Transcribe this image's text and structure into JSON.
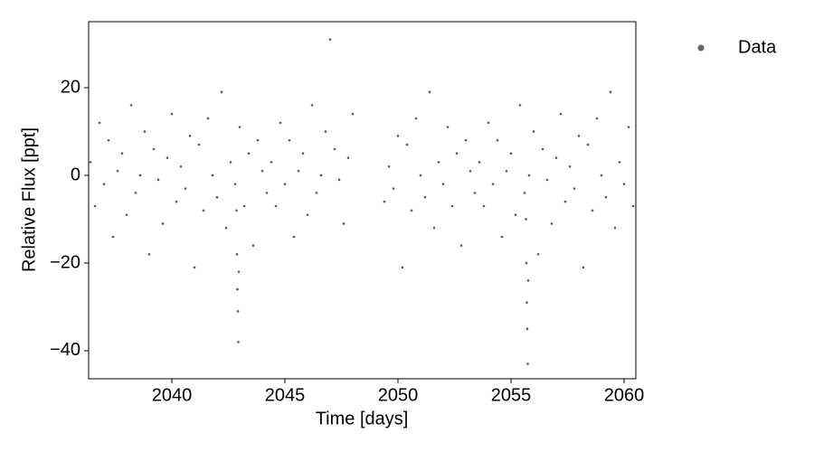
{
  "chart_data": {
    "type": "scatter",
    "xlabel": "Time [days]",
    "ylabel": "Relative Flux [ppt]",
    "xlim": [
      2036.32,
      2060.52
    ],
    "ylim": [
      -46.4,
      35.05
    ],
    "xticks": [
      2040,
      2045,
      2050,
      2055,
      2060
    ],
    "yticks": [
      {
        "value": -40,
        "label": "−40"
      },
      {
        "value": -20,
        "label": "−20"
      },
      0,
      20
    ],
    "legend": "upper right outside",
    "series": [
      {
        "name": "Data",
        "color": "#000000",
        "x": [
          2036.4,
          2036.6,
          2036.8,
          2037.0,
          2037.2,
          2037.4,
          2037.6,
          2037.8,
          2038.0,
          2038.2,
          2038.4,
          2038.6,
          2038.8,
          2039.0,
          2039.2,
          2039.4,
          2039.6,
          2039.8,
          2040.0,
          2040.2,
          2040.4,
          2040.6,
          2040.8,
          2041.0,
          2041.2,
          2041.4,
          2041.6,
          2041.8,
          2042.0,
          2042.2,
          2042.4,
          2042.6,
          2042.8,
          2042.86,
          2042.88,
          2042.9,
          2042.92,
          2042.94,
          2042.96,
          2043.0,
          2043.2,
          2043.4,
          2043.6,
          2043.8,
          2044.0,
          2044.2,
          2044.4,
          2044.6,
          2044.8,
          2045.0,
          2045.2,
          2045.4,
          2045.6,
          2045.8,
          2046.0,
          2046.2,
          2046.4,
          2046.6,
          2046.8,
          2047.0,
          2047.2,
          2047.4,
          2047.6,
          2047.8,
          2048.0,
          2049.4,
          2049.6,
          2049.8,
          2050.0,
          2050.2,
          2050.4,
          2050.6,
          2050.8,
          2051.0,
          2051.2,
          2051.4,
          2051.6,
          2051.8,
          2052.0,
          2052.2,
          2052.4,
          2052.6,
          2052.8,
          2053.0,
          2053.2,
          2053.4,
          2053.6,
          2053.8,
          2054.0,
          2054.2,
          2054.4,
          2054.6,
          2054.8,
          2055.0,
          2055.2,
          2055.4,
          2055.6,
          2055.66,
          2055.68,
          2055.7,
          2055.72,
          2055.74,
          2055.76,
          2055.8,
          2056.0,
          2056.2,
          2056.4,
          2056.6,
          2056.8,
          2057.0,
          2057.2,
          2057.4,
          2057.6,
          2057.8,
          2058.0,
          2058.2,
          2058.4,
          2058.6,
          2058.8,
          2059.0,
          2059.2,
          2059.4,
          2059.6,
          2059.8,
          2060.0,
          2060.2,
          2060.4
        ],
        "values": [
          3,
          -7,
          12,
          -2,
          8,
          -14,
          1,
          5,
          -9,
          16,
          -4,
          0,
          10,
          -18,
          6,
          -1,
          -11,
          4,
          14,
          -6,
          2,
          -3,
          9,
          -21,
          7,
          -8,
          13,
          0,
          -5,
          19,
          -12,
          3,
          -2,
          -8,
          -18,
          -26,
          -31,
          -38,
          -22,
          11,
          -7,
          5,
          -16,
          8,
          1,
          -4,
          3,
          -7,
          12,
          -2,
          8,
          -14,
          1,
          5,
          -9,
          16,
          -4,
          0,
          10,
          31,
          6,
          -1,
          -11,
          4,
          14,
          -6,
          2,
          -3,
          9,
          -21,
          7,
          -8,
          13,
          0,
          -5,
          19,
          -12,
          3,
          -2,
          11,
          -7,
          5,
          -16,
          8,
          1,
          -4,
          3,
          -7,
          12,
          -2,
          8,
          -14,
          1,
          5,
          -9,
          16,
          -4,
          -10,
          -20,
          -29,
          -35,
          -43,
          -24,
          0,
          10,
          -18,
          6,
          -1,
          -11,
          4,
          14,
          -6,
          2,
          -3,
          9,
          -21,
          7,
          -8,
          13,
          0,
          -5,
          19,
          -12,
          3,
          -2,
          11,
          -7
        ]
      }
    ]
  }
}
